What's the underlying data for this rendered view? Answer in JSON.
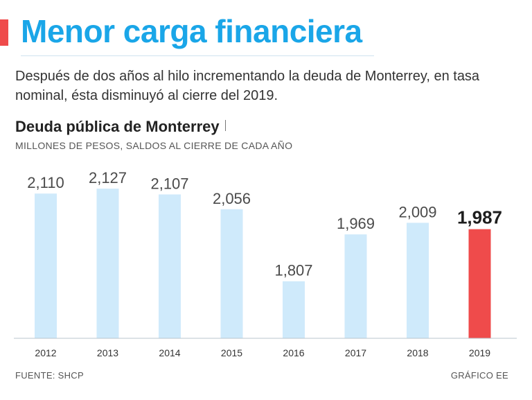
{
  "headline": "Menor carga financiera",
  "subtitle": "Después de dos años al hilo incrementando la deuda de Monterrey, en tasa nominal, ésta disminuyó al cierre del 2019.",
  "colors": {
    "accent": "#ef4b4b",
    "headline": "#1aa6e8",
    "bar": "#cfeafb",
    "highlight_bar": "#ef4b4b"
  },
  "chart_data": {
    "type": "bar",
    "title": "Deuda pública de Monterrey",
    "subtitle": "MILLONES DE PESOS, SALDOS AL CIERRE DE CADA AÑO",
    "categories": [
      "2012",
      "2013",
      "2014",
      "2015",
      "2016",
      "2017",
      "2018",
      "2019"
    ],
    "values": [
      2110,
      2127,
      2107,
      2056,
      1807,
      1969,
      2009,
      1987
    ],
    "value_labels": [
      "2,110",
      "2,127",
      "2,107",
      "2,056",
      "1,807",
      "1,969",
      "2,009",
      "1,987"
    ],
    "highlight_index": 7,
    "xlabel": "",
    "ylabel": "",
    "ylim": [
      1610,
      2180
    ],
    "grid": false
  },
  "footer": {
    "source": "FUENTE: SHCP",
    "credit": "GRÁFICO EE"
  }
}
